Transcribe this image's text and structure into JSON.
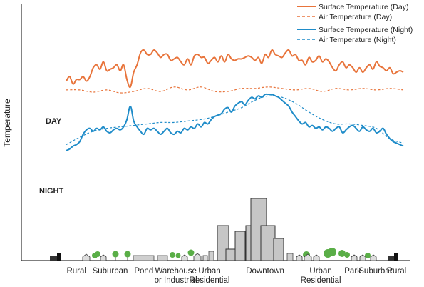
{
  "chart_data": {
    "type": "line",
    "title": "",
    "xlabel": "",
    "ylabel": "Temperature",
    "xlim": [
      0,
      100
    ],
    "ylim": [
      0,
      100
    ],
    "legend_position": "top-right",
    "markers": {
      "day": "DAY",
      "night": "NIGHT"
    },
    "categories": [
      "Rural",
      "Suburban",
      "Pond",
      "Warehouse",
      "or Industrial",
      "Urban",
      "Residential",
      "Downtown",
      "Urban",
      "Residential",
      "Park",
      "Suburban",
      "Rural"
    ],
    "zones": [
      {
        "lines": [
          "Rural"
        ],
        "x": 3
      },
      {
        "lines": [
          "Suburban"
        ],
        "x": 13
      },
      {
        "lines": [
          "Pond"
        ],
        "x": 23
      },
      {
        "lines": [
          "Warehouse",
          "or Industrial"
        ],
        "x": 32.5
      },
      {
        "lines": [
          "Urban",
          "Residential"
        ],
        "x": 42.5
      },
      {
        "lines": [
          "Downtown"
        ],
        "x": 59
      },
      {
        "lines": [
          "Urban",
          "Residential"
        ],
        "x": 75.5
      },
      {
        "lines": [
          "Park"
        ],
        "x": 85
      },
      {
        "lines": [
          "Suburban"
        ],
        "x": 92
      },
      {
        "lines": [
          "Rural"
        ],
        "x": 98
      }
    ],
    "series": [
      {
        "name": "Surface Temperature (Day)",
        "color": "#e8743b",
        "dash": false,
        "x": [
          0,
          1,
          2,
          3,
          4,
          5,
          6,
          7,
          8,
          9,
          10,
          11,
          12,
          13,
          14,
          15,
          16,
          17,
          18,
          19,
          20,
          21,
          22,
          23,
          24,
          25,
          26,
          27,
          28,
          29,
          30,
          31,
          32,
          33,
          34,
          35,
          36,
          37,
          38,
          39,
          40,
          41,
          42,
          43,
          44,
          45,
          46,
          47,
          48,
          49,
          50,
          51,
          52,
          53,
          54,
          55,
          56,
          57,
          58,
          59,
          60,
          61,
          62,
          63,
          64,
          65,
          66,
          67,
          68,
          69,
          70,
          71,
          72,
          73,
          74,
          75,
          76,
          77,
          78,
          79,
          80,
          81,
          82,
          83,
          84,
          85,
          86,
          87,
          88,
          89,
          90,
          91,
          92,
          93,
          94,
          95,
          96,
          97,
          98,
          99,
          100
        ],
        "y": [
          79,
          82,
          77,
          80,
          80,
          82,
          79,
          82,
          88,
          90,
          87,
          92,
          86,
          87,
          88,
          90,
          86,
          90,
          80,
          75,
          85,
          90,
          98,
          100,
          97,
          97,
          100,
          98,
          95,
          97,
          97,
          93,
          94,
          95,
          92,
          90,
          94,
          90,
          96,
          97,
          95,
          95,
          91,
          93,
          95,
          92,
          96,
          92,
          97,
          94,
          93,
          94,
          94,
          95,
          96,
          95,
          93,
          95,
          91,
          97,
          95,
          100,
          97,
          96,
          95,
          98,
          100,
          96,
          97,
          93,
          93,
          90,
          95,
          92,
          93,
          96,
          92,
          94,
          92,
          88,
          86,
          90,
          92,
          88,
          90,
          88,
          85,
          88,
          85,
          88,
          90,
          87,
          92,
          89,
          88,
          86,
          88,
          84,
          85,
          86,
          85
        ]
      },
      {
        "name": "Air Temperature (Day)",
        "color": "#e8743b",
        "dash": true,
        "x": [
          0,
          4,
          8,
          12,
          16,
          20,
          24,
          28,
          32,
          36,
          40,
          44,
          48,
          52,
          56,
          60,
          64,
          68,
          72,
          76,
          80,
          84,
          88,
          92,
          96,
          100
        ],
        "y": [
          73,
          73,
          71.5,
          73,
          71,
          72,
          74,
          72,
          75,
          73,
          75,
          72,
          72,
          74,
          74,
          75,
          74,
          73,
          74,
          72,
          74,
          73,
          74,
          73,
          74,
          73
        ]
      },
      {
        "name": "Surface Temperature (Night)",
        "color": "#1f8cc9",
        "dash": false,
        "x": [
          0,
          1,
          2,
          3,
          4,
          5,
          6,
          7,
          8,
          9,
          10,
          11,
          12,
          13,
          14,
          15,
          16,
          17,
          18,
          19,
          20,
          21,
          22,
          23,
          24,
          25,
          26,
          27,
          28,
          29,
          30,
          31,
          32,
          33,
          34,
          35,
          36,
          37,
          38,
          39,
          40,
          41,
          42,
          43,
          44,
          45,
          46,
          47,
          48,
          49,
          50,
          51,
          52,
          53,
          54,
          55,
          56,
          57,
          58,
          59,
          60,
          61,
          62,
          63,
          64,
          65,
          66,
          67,
          68,
          69,
          70,
          71,
          72,
          73,
          74,
          75,
          76,
          77,
          78,
          79,
          80,
          81,
          82,
          83,
          84,
          85,
          86,
          87,
          88,
          89,
          90,
          91,
          92,
          93,
          94,
          95,
          96,
          97,
          98,
          99,
          100
        ],
        "y": [
          32,
          33,
          35,
          36,
          38,
          43,
          46,
          47,
          45,
          47,
          46,
          48,
          45,
          44,
          46,
          47,
          46,
          48,
          53,
          62,
          52,
          48,
          45,
          43,
          47,
          46,
          47,
          45,
          43,
          45,
          47,
          44,
          43,
          45,
          44,
          47,
          46,
          48,
          47,
          50,
          48,
          51,
          50,
          53,
          55,
          56,
          57,
          60,
          61,
          58,
          62,
          64,
          65,
          63,
          66,
          68,
          67,
          69,
          68,
          70,
          70,
          70,
          69,
          68,
          66,
          64,
          62,
          58,
          55,
          52,
          50,
          51,
          48,
          49,
          47,
          48,
          46,
          48,
          47,
          45,
          47,
          48,
          44,
          46,
          48,
          49,
          47,
          45,
          48,
          46,
          45,
          47,
          44,
          45,
          47,
          43,
          40,
          38,
          37,
          36,
          35
        ]
      },
      {
        "name": "Air Temperature (Night)",
        "color": "#1f8cc9",
        "dash": true,
        "x": [
          0,
          4,
          8,
          12,
          16,
          20,
          24,
          28,
          32,
          36,
          40,
          44,
          48,
          52,
          56,
          60,
          64,
          68,
          72,
          76,
          80,
          84,
          88,
          92,
          96,
          100
        ],
        "y": [
          36,
          41,
          45,
          47,
          48,
          49,
          50,
          51,
          51,
          52,
          53,
          55,
          58,
          61,
          66,
          69,
          68,
          64,
          58,
          53,
          50,
          50,
          49,
          47,
          40,
          37
        ]
      }
    ]
  }
}
